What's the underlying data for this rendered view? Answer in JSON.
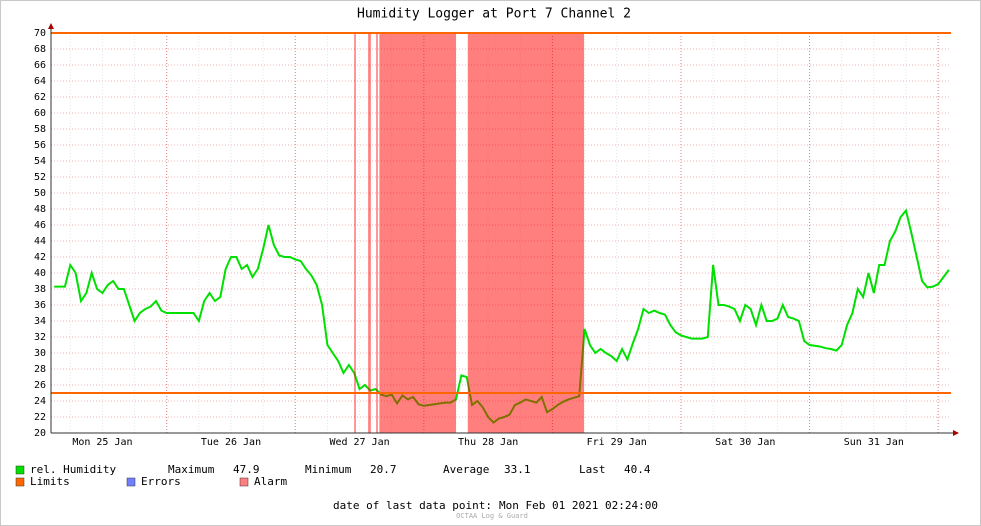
{
  "chart_data": {
    "type": "line",
    "title": "Humidity Logger at Port 7 Channel 2",
    "x": [
      3,
      4,
      5,
      6,
      7,
      8,
      9,
      10,
      11,
      12,
      13,
      14,
      15,
      16,
      17,
      18,
      19,
      20,
      21,
      22,
      23,
      24,
      25,
      26,
      27,
      28,
      29,
      30,
      31,
      32,
      33,
      34,
      35,
      36,
      37,
      38,
      39,
      40,
      41,
      42,
      43,
      44,
      45,
      46,
      47,
      48,
      49,
      50,
      51,
      52,
      53,
      54,
      55,
      56,
      57,
      58,
      59,
      60,
      61,
      62,
      63,
      64,
      65,
      66,
      67,
      68,
      69,
      70,
      71,
      72,
      73,
      74,
      75,
      76,
      77,
      78,
      79,
      80,
      81,
      82,
      83,
      84,
      85,
      86,
      87,
      88,
      89,
      90,
      91,
      92,
      93,
      94,
      95,
      96,
      97,
      98,
      99,
      100,
      101,
      102,
      103,
      104,
      105,
      106,
      107,
      108,
      109,
      110,
      111,
      112,
      113,
      114,
      115,
      116,
      117,
      118,
      119,
      120,
      121,
      122,
      123,
      124,
      125,
      126,
      127,
      128,
      129,
      130,
      131,
      132,
      133,
      134,
      135,
      136,
      137,
      138,
      139,
      140,
      141,
      142,
      143,
      144,
      145,
      146,
      147,
      148,
      149,
      150,
      151,
      152,
      153,
      154,
      155,
      156,
      157,
      158,
      159,
      160,
      161,
      162,
      163,
      164,
      165,
      166,
      167,
      168,
      169,
      170
    ],
    "series": [
      {
        "name": "rel. Humidity",
        "color": "#00e000",
        "values": [
          38.3,
          38.3,
          38.3,
          41,
          40,
          36.5,
          37.5,
          40,
          38,
          37.5,
          38.5,
          39,
          38,
          38,
          36,
          34,
          35,
          35.5,
          35.8,
          36.5,
          35.3,
          35,
          35,
          35,
          35,
          35,
          35,
          34,
          36.5,
          37.5,
          36.5,
          37,
          40.5,
          42,
          42,
          40.5,
          41,
          39.5,
          40.5,
          43,
          46,
          43.5,
          42.2,
          42,
          42,
          41.7,
          41.5,
          40.5,
          39.7,
          38.5,
          36,
          31,
          30,
          29,
          27.5,
          28.5,
          27.5,
          25.5,
          26,
          25.3,
          25.5,
          24.8,
          24.6,
          24.8,
          23.7,
          24.7,
          24.2,
          24.5,
          23.6,
          23.4,
          23.5,
          23.6,
          23.7,
          23.8,
          23.8,
          24.2,
          27.2,
          27,
          23.5,
          24,
          23.2,
          22,
          21.3,
          21.8,
          22,
          22.3,
          23.5,
          23.8,
          24.2,
          24,
          23.8,
          24.5,
          22.6,
          23,
          23.5,
          23.9,
          24.2,
          24.4,
          24.6,
          33,
          31,
          30,
          30.5,
          30,
          29.6,
          29,
          30.5,
          29.2,
          31.2,
          33,
          35.5,
          35,
          35.3,
          35,
          34.8,
          33.5,
          32.6,
          32.2,
          32,
          31.8,
          31.8,
          31.8,
          32,
          41,
          36,
          36,
          35.8,
          35.5,
          34,
          36,
          35.5,
          33.5,
          36,
          34,
          34,
          34.3,
          36,
          34.5,
          34.3,
          34,
          31.5,
          31,
          30.9,
          30.8,
          30.6,
          30.5,
          30.3,
          31,
          33.5,
          35,
          38,
          37,
          40,
          37.5,
          41,
          41,
          44,
          45.2,
          47,
          47.8,
          45,
          42,
          39,
          38.2,
          38.3,
          38.6,
          39.5,
          40.4
        ]
      }
    ],
    "xlim": [
      2.4,
      170.4
    ],
    "xticks": [
      {
        "value": 12,
        "label": "Mon 25 Jan"
      },
      {
        "value": 36,
        "label": "Tue 26 Jan"
      },
      {
        "value": 60,
        "label": "Wed 27 Jan"
      },
      {
        "value": 84,
        "label": "Thu 28 Jan"
      },
      {
        "value": 108,
        "label": "Fri 29 Jan"
      },
      {
        "value": 132,
        "label": "Sat 30 Jan"
      },
      {
        "value": 156,
        "label": "Sun 31 Jan"
      }
    ],
    "xgrid": [
      24,
      48,
      72,
      96,
      120,
      144,
      168
    ],
    "ylim": [
      20,
      70
    ],
    "yticks": [
      20,
      22,
      24,
      26,
      28,
      30,
      32,
      34,
      36,
      38,
      40,
      42,
      44,
      46,
      48,
      50,
      52,
      54,
      56,
      58,
      60,
      62,
      64,
      66,
      68,
      70
    ],
    "grid": true,
    "limits": {
      "name": "Limits",
      "color": "#ff6600",
      "values": [
        25,
        70
      ]
    },
    "errors": {
      "name": "Errors",
      "color": "#6f7fff"
    },
    "alarm": {
      "name": "Alarm",
      "color": "#ff0000",
      "periods": [
        [
          59.0,
          59.3
        ],
        [
          61.6,
          62.1
        ],
        [
          63.1,
          63.4
        ],
        [
          63.7,
          78.0
        ],
        [
          80.2,
          101.9
        ]
      ]
    },
    "stats": [
      {
        "label": "Maximum",
        "value": 47.9
      },
      {
        "label": "Minimum",
        "value": 20.7
      },
      {
        "label": "Average",
        "value": 33.1
      },
      {
        "label": "Last",
        "value": 40.4
      }
    ],
    "footer_label": "date of last data point:",
    "footer_value": "Mon Feb 01 2021 02:24:00",
    "watermark": "OCTAA Log & Guard"
  }
}
